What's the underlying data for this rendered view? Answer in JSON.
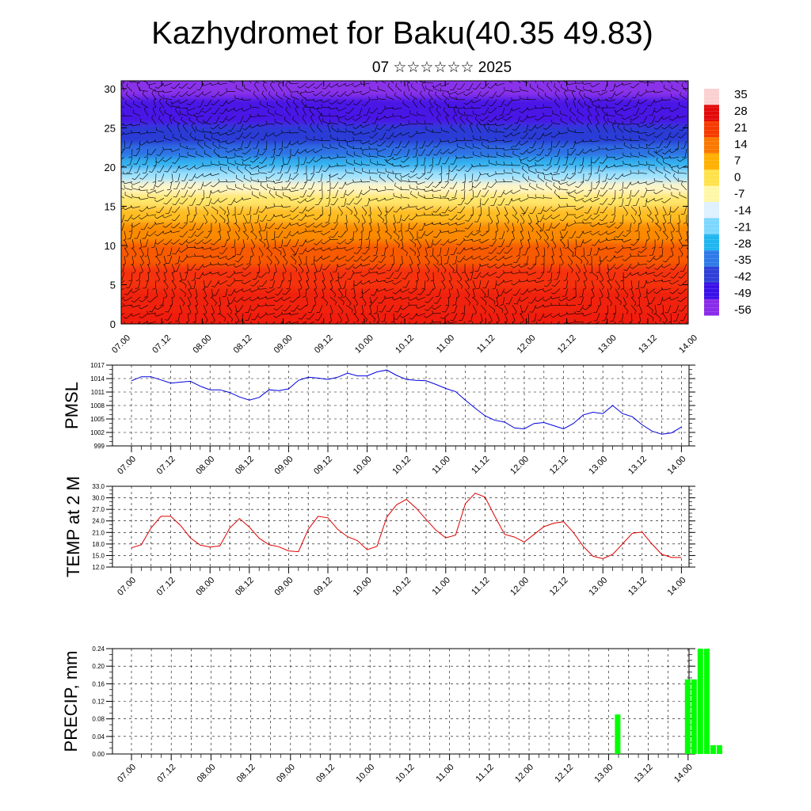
{
  "page": {
    "title": "Kazhydromet for Baku(40.35 49.83)",
    "subtitle": "07 ☆☆☆☆☆☆ 2025"
  },
  "chart_data": [
    {
      "type": "heatmap",
      "x_ticks": [
        "07.00",
        "07.12",
        "08.00",
        "08.12",
        "09.00",
        "09.12",
        "10.00",
        "10.12",
        "11.00",
        "11.12",
        "12.00",
        "12.12",
        "13.00",
        "13.12",
        "14.00"
      ],
      "y_ticks": [
        "0",
        "5",
        "10",
        "15",
        "20",
        "25",
        "30"
      ],
      "ylim": [
        0,
        31
      ],
      "colorbar_labels": [
        "35",
        "28",
        "21",
        "14",
        "7",
        "0",
        "-7",
        "-14",
        "-21",
        "-28",
        "-35",
        "-42",
        "-49",
        "-56"
      ],
      "colorbar_colors": [
        "#fbd0d0",
        "#e30a0a",
        "#f53a00",
        "#fa7800",
        "#ffb000",
        "#ffe24a",
        "#fff7a8",
        "#dff0ff",
        "#7cd7ff",
        "#20b6f0",
        "#2f7ae8",
        "#2f3fd8",
        "#3a10e8",
        "#8a2bea"
      ],
      "field_layers": [
        {
          "level": 0,
          "color": "#f01a0a"
        },
        {
          "level": 3,
          "color": "#f02010"
        },
        {
          "level": 6,
          "color": "#f53010"
        },
        {
          "level": 9,
          "color": "#f75a00"
        },
        {
          "level": 12,
          "color": "#fa8a00"
        },
        {
          "level": 14,
          "color": "#ffbd20"
        },
        {
          "level": 16,
          "color": "#ffe66a"
        },
        {
          "level": 17.5,
          "color": "#fff6c8"
        },
        {
          "level": 19,
          "color": "#9ee2ff"
        },
        {
          "level": 20.5,
          "color": "#30b2f0"
        },
        {
          "level": 22,
          "color": "#2f6fe4"
        },
        {
          "level": 24,
          "color": "#2a3ad6"
        },
        {
          "level": 27,
          "color": "#4a18e6"
        },
        {
          "level": 31,
          "color": "#8a33ea"
        }
      ]
    },
    {
      "type": "line",
      "ylabel": "PMSL",
      "y_ticks": [
        "1017",
        "1014",
        "1011",
        "1008",
        "1005",
        "1002",
        "999"
      ],
      "ylim": [
        999,
        1017
      ],
      "x_ticks": [
        "07.00",
        "07.12",
        "08.00",
        "08.12",
        "09.00",
        "09.12",
        "10.00",
        "10.12",
        "11.00",
        "11.12",
        "12.00",
        "12.12",
        "13.00",
        "13.12",
        "14.00"
      ],
      "series": [
        {
          "color": "#0000dd",
          "values": [
            1013.5,
            1014.4,
            1014.4,
            1013.7,
            1013.0,
            1013.2,
            1013.4,
            1012.3,
            1011.5,
            1011.5,
            1010.9,
            1009.9,
            1009.2,
            1009.8,
            1011.5,
            1011.3,
            1011.7,
            1013.6,
            1014.3,
            1014.1,
            1013.8,
            1014.3,
            1015.2,
            1014.6,
            1014.6,
            1015.5,
            1015.9,
            1014.7,
            1013.8,
            1013.6,
            1013.5,
            1012.7,
            1011.8,
            1011.1,
            1009.2,
            1007.4,
            1005.7,
            1004.7,
            1004.3,
            1003.0,
            1002.8,
            1004.0,
            1004.2,
            1003.5,
            1002.8,
            1004.0,
            1005.9,
            1006.5,
            1006.2,
            1008.0,
            1006.2,
            1005.5,
            1003.7,
            1002.3,
            1001.6,
            1001.9,
            1003.2
          ]
        }
      ]
    },
    {
      "type": "line",
      "ylabel": "TEMP at 2 M",
      "y_ticks": [
        "33.0",
        "30.0",
        "27.0",
        "24.0",
        "21.0",
        "18.0",
        "15.0",
        "12.0"
      ],
      "ylim": [
        12,
        33
      ],
      "x_ticks": [
        "07.00",
        "07.12",
        "08.00",
        "08.12",
        "09.00",
        "09.12",
        "10.00",
        "10.12",
        "11.00",
        "11.12",
        "12.00",
        "12.12",
        "13.00",
        "13.12",
        "14.00"
      ],
      "series": [
        {
          "color": "#dd0000",
          "values": [
            17.0,
            17.8,
            22.2,
            25.2,
            25.2,
            22.8,
            19.6,
            17.7,
            17.2,
            17.5,
            22.1,
            24.6,
            22.4,
            19.5,
            17.8,
            17.3,
            16.2,
            16.0,
            21.8,
            25.2,
            24.8,
            21.8,
            19.9,
            18.9,
            16.5,
            17.4,
            25.0,
            28.2,
            29.6,
            27.3,
            24.4,
            21.6,
            19.6,
            20.3,
            28.5,
            31.2,
            30.2,
            25.2,
            20.5,
            19.8,
            18.5,
            20.5,
            22.5,
            23.4,
            23.8,
            21.0,
            17.4,
            14.8,
            14.2,
            15.3,
            18.0,
            20.8,
            21.1,
            18.0,
            15.3,
            14.5,
            14.5
          ]
        }
      ]
    },
    {
      "type": "bar",
      "ylabel": "PRECIP, mm",
      "y_ticks": [
        "0.24",
        "0.20",
        "0.16",
        "0.12",
        "0.08",
        "0.04",
        "0.00"
      ],
      "ylim": [
        0,
        0.24
      ],
      "x_ticks": [
        "07.00",
        "07.12",
        "08.00",
        "08.12",
        "09.00",
        "09.12",
        "10.00",
        "10.12",
        "11.00",
        "11.12",
        "12.00",
        "12.12",
        "13.00",
        "13.12",
        "14.00"
      ],
      "series": [
        {
          "color": "#00ff00",
          "bars": [
            {
              "x": 13.04,
              "value": 0.09
            },
            {
              "x": 13.48,
              "value": 0.17
            },
            {
              "x": 13.52,
              "value": 0.17
            },
            {
              "x": 13.56,
              "value": 0.24
            },
            {
              "x": 13.6,
              "value": 0.24
            },
            {
              "x": 13.64,
              "value": 0.02
            },
            {
              "x": 13.68,
              "value": 0.02
            }
          ]
        }
      ]
    }
  ]
}
